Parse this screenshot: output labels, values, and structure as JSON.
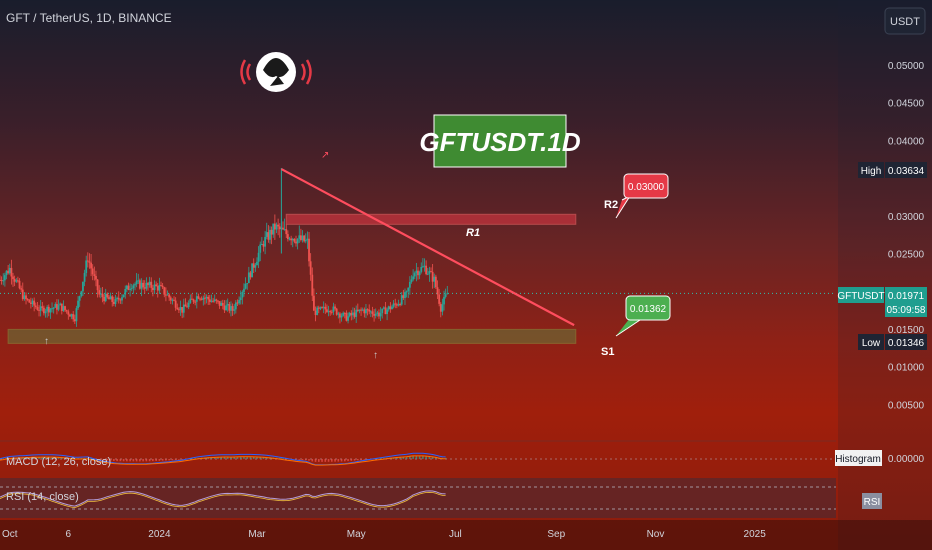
{
  "header": {
    "title": "GFT / TetherUS, 1D, BINANCE"
  },
  "currency_button": "USDT",
  "watermark_label": "GFTUSDT.1D",
  "annotations": {
    "r2_label": "R2",
    "r1_label": "R1",
    "s1_label": "S1",
    "r2_price": "0.03000",
    "s1_price": "0.01362"
  },
  "price_axis": {
    "ticks": [
      "0.05000",
      "0.04500",
      "0.04000",
      "0.03000",
      "0.02500",
      "0.01500",
      "0.01000",
      "0.00500"
    ],
    "high": {
      "label": "High",
      "value": "0.03634"
    },
    "current": {
      "label": "GFTUSDT",
      "value": "0.01971",
      "countdown": "05:09:58"
    },
    "low": {
      "label": "Low",
      "value": "0.01346"
    }
  },
  "time_axis": {
    "ticks": [
      "Oct",
      "6",
      "2024",
      "Mar",
      "May",
      "Jul",
      "Sep",
      "Nov",
      "2025"
    ]
  },
  "indicators": {
    "macd_label": "MACD (12, 26, close)",
    "macd_tag": "Histogram",
    "macd_value": "0.00000",
    "rsi_label": "RSI (14, close)",
    "rsi_tag": "RSI"
  },
  "colors": {
    "up": "#26a69a",
    "down": "#ef5350",
    "trendline": "#ff4d5e",
    "r2_box": "#e53946",
    "s1_box": "#4caf50",
    "axis_text": "#d1d4dc"
  },
  "chart_data": {
    "type": "candlestick",
    "x": [
      "Oct",
      "6",
      "2024",
      "Mar",
      "May",
      "Jul",
      "Sep",
      "Nov",
      "2025"
    ],
    "ylim": [
      0.0035,
      0.053
    ],
    "price_path": [
      [
        "2023-09-25",
        0.0215
      ],
      [
        "2023-10-01",
        0.023
      ],
      [
        "2023-10-10",
        0.019
      ],
      [
        "2023-10-20",
        0.0175
      ],
      [
        "2023-11-01",
        0.018
      ],
      [
        "2023-11-10",
        0.0165
      ],
      [
        "2023-11-18",
        0.0245
      ],
      [
        "2023-11-25",
        0.0195
      ],
      [
        "2023-12-05",
        0.0185
      ],
      [
        "2023-12-15",
        0.021
      ],
      [
        "2024-01-01",
        0.0205
      ],
      [
        "2024-01-15",
        0.0175
      ],
      [
        "2024-01-25",
        0.0195
      ],
      [
        "2024-02-05",
        0.0185
      ],
      [
        "2024-02-15",
        0.0175
      ],
      [
        "2024-02-25",
        0.022
      ],
      [
        "2024-03-05",
        0.0265
      ],
      [
        "2024-03-12",
        0.0285
      ],
      [
        "2024-03-20",
        0.0275
      ],
      [
        "2024-03-25",
        0.027
      ],
      [
        "2024-04-01",
        0.0265
      ],
      [
        "2024-04-05",
        0.0172
      ],
      [
        "2024-04-15",
        0.0178
      ],
      [
        "2024-04-25",
        0.0165
      ],
      [
        "2024-05-05",
        0.0175
      ],
      [
        "2024-05-15",
        0.017
      ],
      [
        "2024-05-25",
        0.0182
      ],
      [
        "2024-06-01",
        0.0195
      ],
      [
        "2024-06-05",
        0.0225
      ],
      [
        "2024-06-12",
        0.0232
      ],
      [
        "2024-06-18",
        0.0215
      ],
      [
        "2024-06-22",
        0.0178
      ],
      [
        "2024-06-26",
        0.01971
      ]
    ],
    "high": 0.03634,
    "low": 0.01346,
    "last": 0.01971,
    "levels": {
      "R2": 0.03,
      "S1": 0.01362
    },
    "trendline": [
      [
        "2024-03-16",
        0.0362
      ],
      [
        "2024-09-12",
        0.0155
      ]
    ],
    "resistance_zone": [
      0.0292,
      0.0298
    ],
    "support_zone": [
      0.0136,
      0.0152
    ],
    "grid": false,
    "legend": "top-left"
  }
}
